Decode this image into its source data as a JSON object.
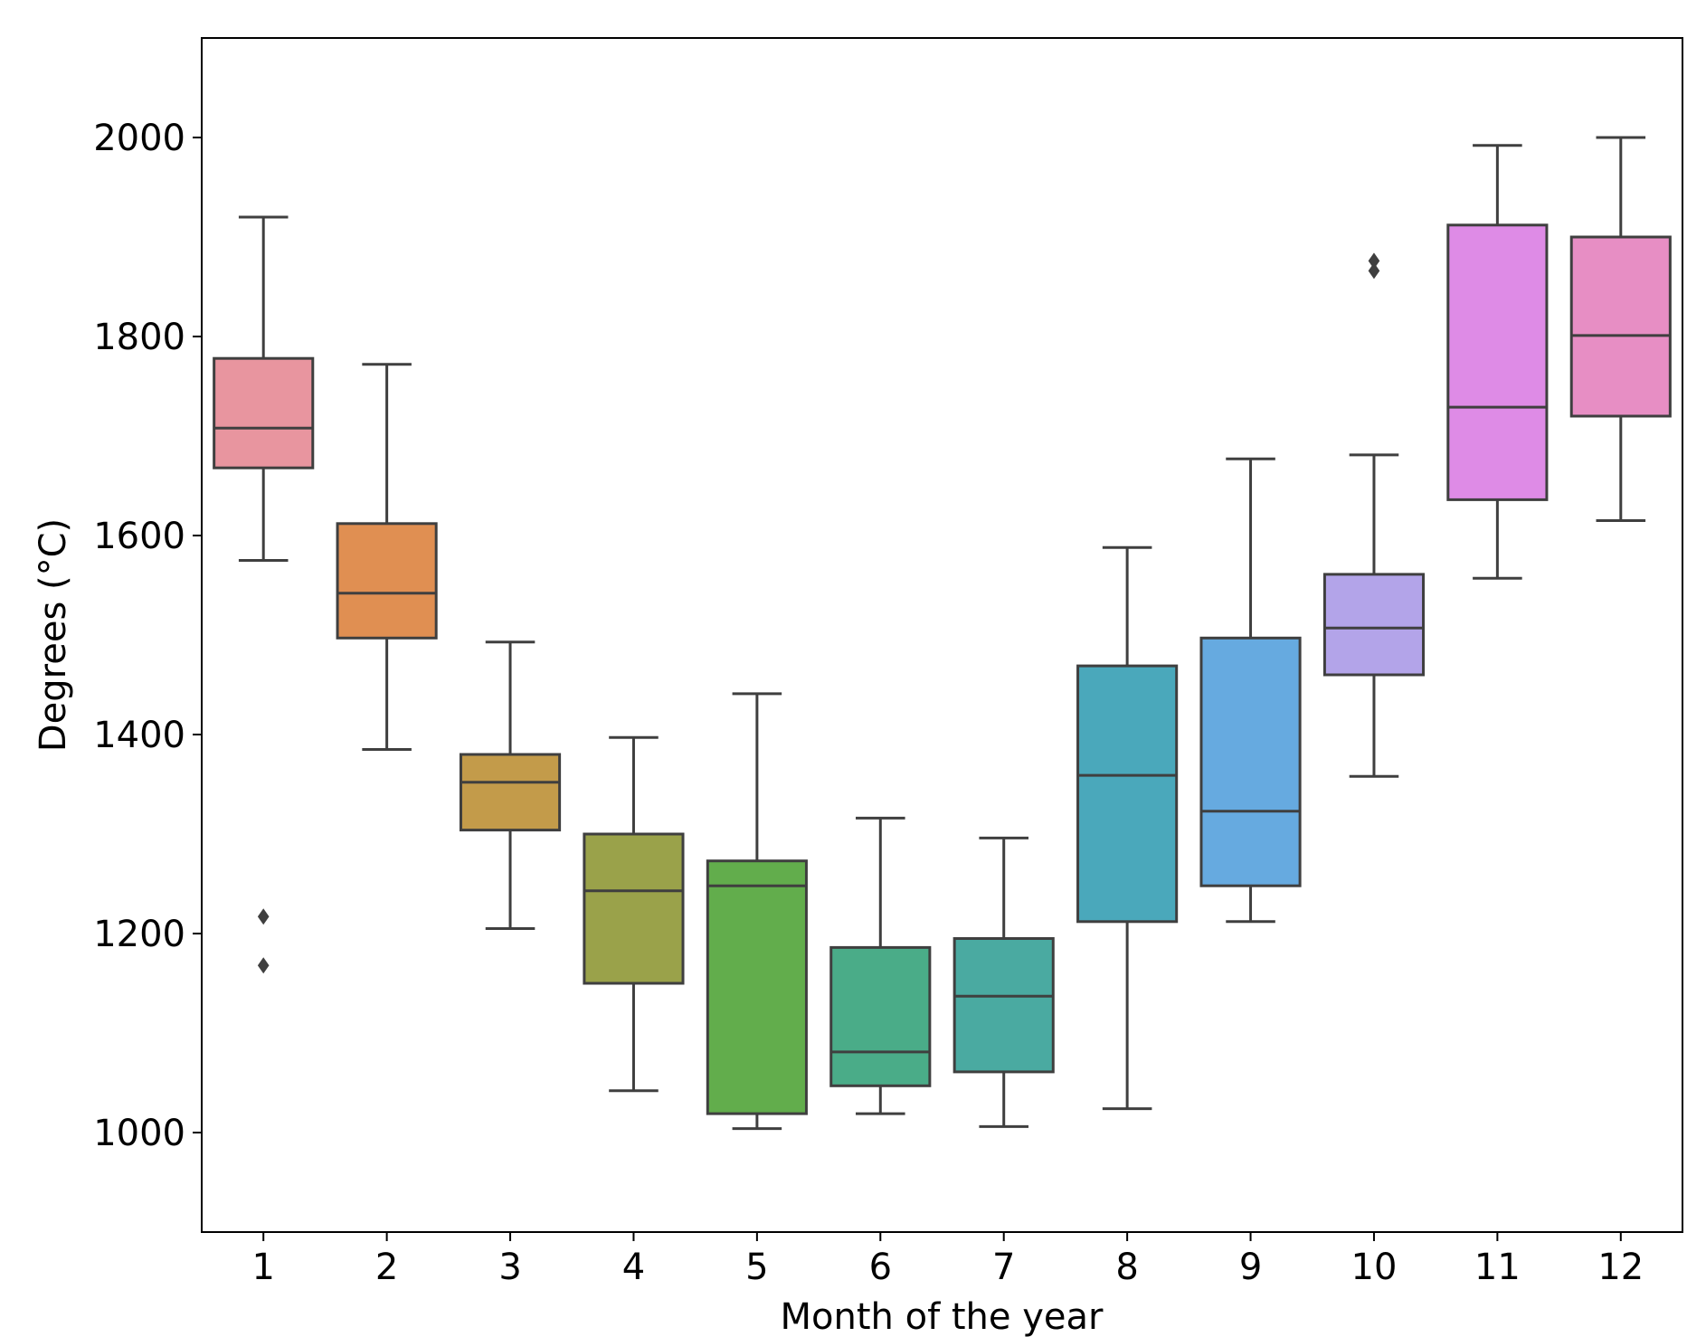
{
  "chart_data": {
    "type": "box",
    "title": "",
    "xlabel": "Month of the year",
    "ylabel": "Degrees (°C)",
    "ylim": [
      900,
      2100
    ],
    "yticks": [
      1000,
      1200,
      1400,
      1600,
      1800,
      2000
    ],
    "categories": [
      "1",
      "2",
      "3",
      "4",
      "5",
      "6",
      "7",
      "8",
      "9",
      "10",
      "11",
      "12"
    ],
    "series": [
      {
        "name": "1",
        "whisker_low": 1575,
        "q1": 1668,
        "median": 1708,
        "q3": 1778,
        "whisker_high": 1920,
        "outliers": [
          1217,
          1168
        ],
        "color": "#e8959f"
      },
      {
        "name": "2",
        "whisker_low": 1385,
        "q1": 1497,
        "median": 1542,
        "q3": 1612,
        "whisker_high": 1772,
        "outliers": [],
        "color": "#e08f52"
      },
      {
        "name": "3",
        "whisker_low": 1205,
        "q1": 1304,
        "median": 1352,
        "q3": 1380,
        "whisker_high": 1493,
        "outliers": [],
        "color": "#c39b4a"
      },
      {
        "name": "4",
        "whisker_low": 1042,
        "q1": 1150,
        "median": 1243,
        "q3": 1300,
        "whisker_high": 1397,
        "outliers": [],
        "color": "#9aa24a"
      },
      {
        "name": "5",
        "whisker_low": 1004,
        "q1": 1019,
        "median": 1248,
        "q3": 1273,
        "whisker_high": 1441,
        "outliers": [],
        "color": "#62ad4c"
      },
      {
        "name": "6",
        "whisker_low": 1019,
        "q1": 1047,
        "median": 1081,
        "q3": 1186,
        "whisker_high": 1316,
        "outliers": [],
        "color": "#4aac88"
      },
      {
        "name": "7",
        "whisker_low": 1006,
        "q1": 1061,
        "median": 1137,
        "q3": 1195,
        "whisker_high": 1296,
        "outliers": [],
        "color": "#4aaaa1"
      },
      {
        "name": "8",
        "whisker_low": 1024,
        "q1": 1212,
        "median": 1359,
        "q3": 1469,
        "whisker_high": 1588,
        "outliers": [],
        "color": "#4aa8bb"
      },
      {
        "name": "9",
        "whisker_low": 1212,
        "q1": 1248,
        "median": 1323,
        "q3": 1497,
        "whisker_high": 1677,
        "outliers": [],
        "color": "#66aae0"
      },
      {
        "name": "10",
        "whisker_low": 1358,
        "q1": 1460,
        "median": 1507,
        "q3": 1561,
        "whisker_high": 1681,
        "outliers": [
          1876,
          1866
        ],
        "color": "#b3a4e9"
      },
      {
        "name": "11",
        "whisker_low": 1557,
        "q1": 1636,
        "median": 1729,
        "q3": 1912,
        "whisker_high": 1992,
        "outliers": [],
        "color": "#de8be6"
      },
      {
        "name": "12",
        "whisker_low": 1615,
        "q1": 1720,
        "median": 1801,
        "q3": 1900,
        "whisker_high": 2000,
        "outliers": [],
        "color": "#e78ec4"
      }
    ],
    "grid": false,
    "legend": "none"
  }
}
